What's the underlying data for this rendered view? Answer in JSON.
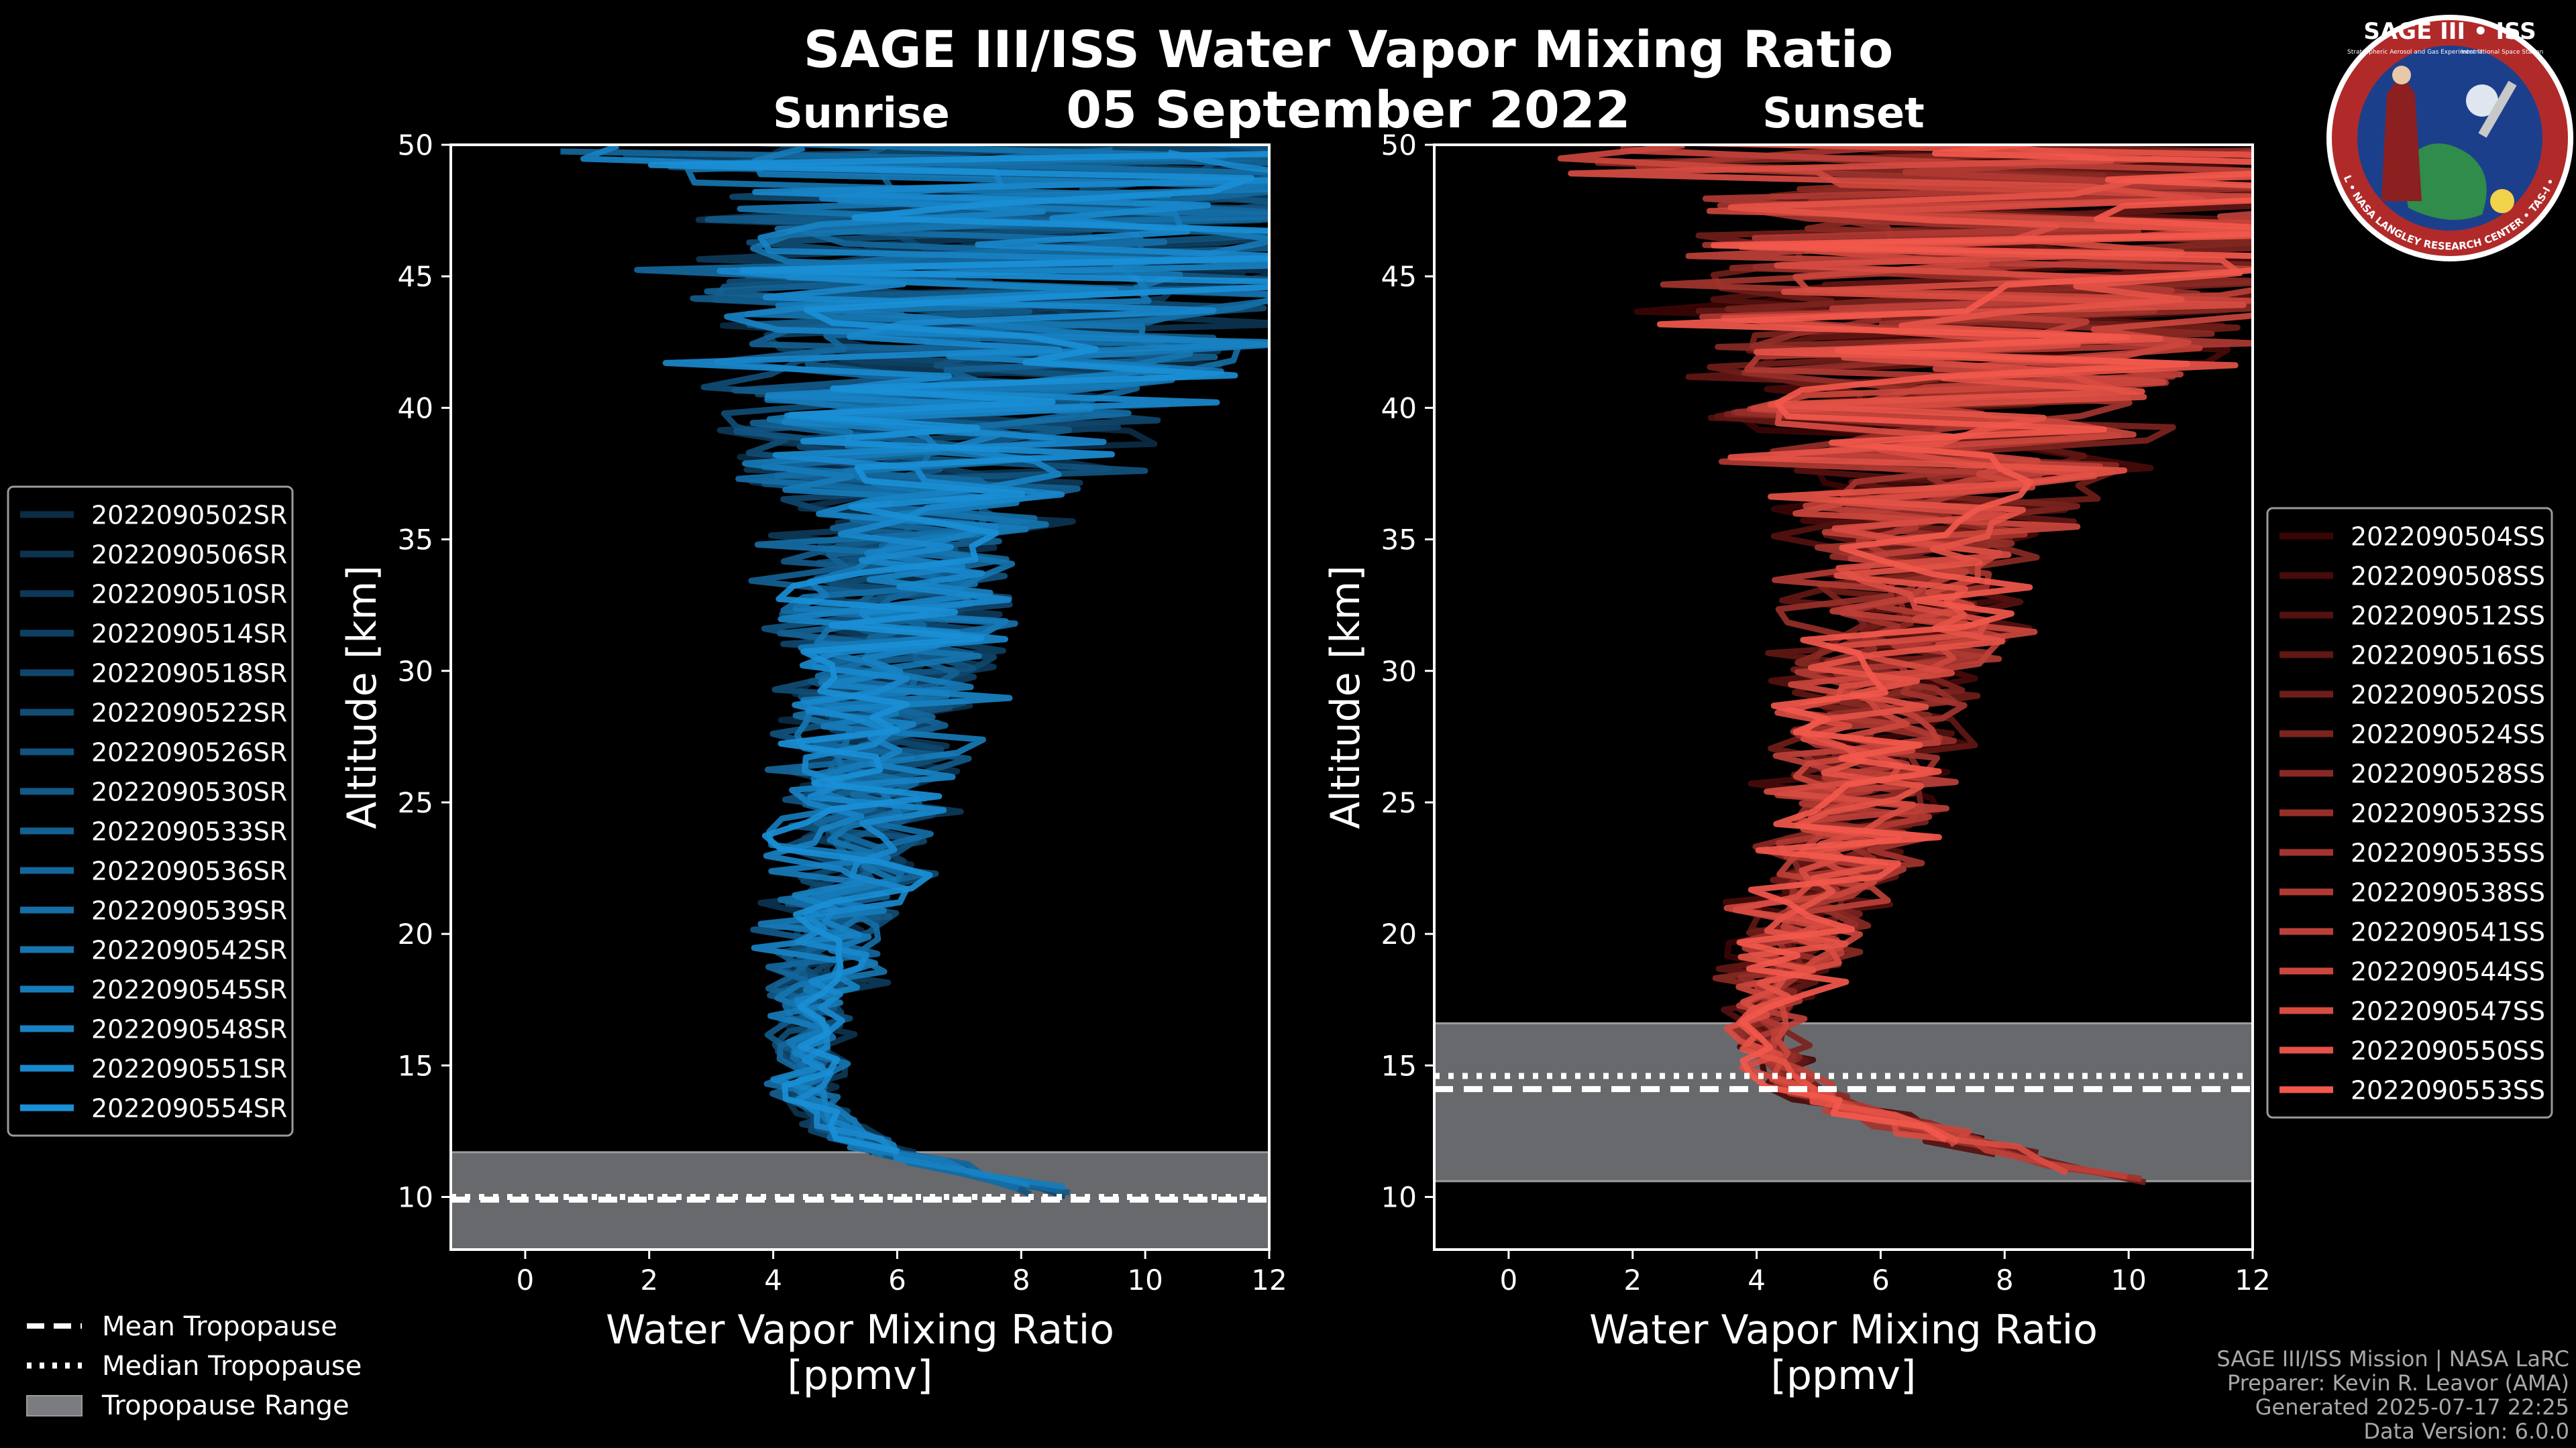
{
  "figure": {
    "title_main": "SAGE III/ISS Water Vapor Mixing Ratio",
    "title_date": "05 September 2022",
    "left_subtitle": "Sunrise",
    "right_subtitle": "Sunset",
    "logo": {
      "top_text": "SAGE III • ISS",
      "sub_text_left": "Stratospheric Aerosol and Gas Experiment III",
      "sub_text_right": "International Space Station",
      "ring_text": "BALL • NASA LANGLEY RESEARCH CENTER • TAS-I • ESA",
      "ring_color": "#b12a2a",
      "bg_color": "#1c3f8c"
    },
    "credits": [
      "SAGE III/ISS Mission | NASA LaRC",
      "Preparer: Kevin R. Leavor (AMA)",
      "Generated 2025-07-17 22:25",
      "Data Version: 6.0.0"
    ],
    "bottom_legend": [
      {
        "label": "Mean Tropopause",
        "style": "dashed"
      },
      {
        "label": "Median Tropopause",
        "style": "dotted"
      },
      {
        "label": "Tropopause Range",
        "style": "band"
      }
    ]
  },
  "chart_data": [
    {
      "type": "line",
      "panel": "sunrise",
      "title": "Sunrise",
      "xlabel": "Water Vapor Mixing Ratio\n[ppmv]",
      "ylabel": "Altitude [km]",
      "xlim": [
        -1.2,
        12
      ],
      "ylim": [
        8,
        50
      ],
      "xticks": [
        0,
        2,
        4,
        6,
        8,
        10,
        12
      ],
      "yticks": [
        10,
        15,
        20,
        25,
        30,
        35,
        40,
        45,
        50
      ],
      "profile_center": {
        "altitude_km": [
          10,
          11,
          12,
          13,
          14,
          15,
          16,
          17,
          18,
          20,
          22,
          25,
          28,
          30,
          32,
          35,
          38,
          40,
          43,
          45,
          48,
          50
        ],
        "ppmv": [
          9.0,
          7.0,
          5.5,
          4.8,
          4.5,
          4.6,
          4.6,
          4.6,
          4.7,
          4.9,
          5.2,
          5.4,
          5.6,
          5.8,
          6.0,
          6.2,
          6.6,
          7.0,
          7.5,
          8.0,
          8.4,
          8.6
        ]
      },
      "colors": {
        "start": "#0b2c45",
        "end": "#1a8fd6"
      },
      "tropopause": {
        "mean": 9.9,
        "median": 10.0,
        "range": [
          8.0,
          11.7
        ]
      },
      "series": [
        {
          "name": "2022090502SR",
          "seed": 11
        },
        {
          "name": "2022090506SR",
          "seed": 23
        },
        {
          "name": "2022090510SR",
          "seed": 37
        },
        {
          "name": "2022090514SR",
          "seed": 41
        },
        {
          "name": "2022090518SR",
          "seed": 53
        },
        {
          "name": "2022090522SR",
          "seed": 67
        },
        {
          "name": "2022090526SR",
          "seed": 71
        },
        {
          "name": "2022090530SR",
          "seed": 83
        },
        {
          "name": "2022090533SR",
          "seed": 97
        },
        {
          "name": "2022090536SR",
          "seed": 101
        },
        {
          "name": "2022090539SR",
          "seed": 113
        },
        {
          "name": "2022090542SR",
          "seed": 127
        },
        {
          "name": "2022090545SR",
          "seed": 131
        },
        {
          "name": "2022090548SR",
          "seed": 149
        },
        {
          "name": "2022090551SR",
          "seed": 157
        },
        {
          "name": "2022090554SR",
          "seed": 163
        }
      ]
    },
    {
      "type": "line",
      "panel": "sunset",
      "title": "Sunset",
      "xlabel": "Water Vapor Mixing Ratio\n[ppmv]",
      "ylabel": "Altitude [km]",
      "xlim": [
        -1.2,
        12
      ],
      "ylim": [
        8,
        50
      ],
      "xticks": [
        0,
        2,
        4,
        6,
        8,
        10,
        12
      ],
      "yticks": [
        10,
        15,
        20,
        25,
        30,
        35,
        40,
        45,
        50
      ],
      "profile_center": {
        "altitude_km": [
          10.5,
          11,
          12,
          13,
          14,
          15,
          16,
          17,
          18,
          20,
          22,
          25,
          28,
          30,
          32,
          35,
          38,
          40,
          43,
          45,
          48,
          50
        ],
        "ppmv": [
          10.5,
          9.0,
          7.5,
          6.0,
          4.8,
          4.3,
          4.2,
          4.2,
          4.3,
          4.6,
          5.0,
          5.6,
          6.0,
          6.2,
          6.4,
          6.6,
          7.0,
          7.2,
          7.6,
          8.0,
          8.4,
          8.6
        ]
      },
      "colors": {
        "start": "#3a0505",
        "end": "#f2584c"
      },
      "tropopause": {
        "mean": 14.1,
        "median": 14.6,
        "range": [
          10.6,
          16.6
        ]
      },
      "series": [
        {
          "name": "2022090504SS",
          "seed": 17
        },
        {
          "name": "2022090508SS",
          "seed": 29
        },
        {
          "name": "2022090512SS",
          "seed": 31
        },
        {
          "name": "2022090516SS",
          "seed": 43
        },
        {
          "name": "2022090520SS",
          "seed": 59
        },
        {
          "name": "2022090524SS",
          "seed": 61
        },
        {
          "name": "2022090528SS",
          "seed": 73
        },
        {
          "name": "2022090532SS",
          "seed": 79
        },
        {
          "name": "2022090535SS",
          "seed": 89
        },
        {
          "name": "2022090538SS",
          "seed": 103
        },
        {
          "name": "2022090541SS",
          "seed": 107
        },
        {
          "name": "2022090544SS",
          "seed": 109
        },
        {
          "name": "2022090547SS",
          "seed": 137
        },
        {
          "name": "2022090550SS",
          "seed": 139
        },
        {
          "name": "2022090553SS",
          "seed": 151
        }
      ]
    }
  ]
}
